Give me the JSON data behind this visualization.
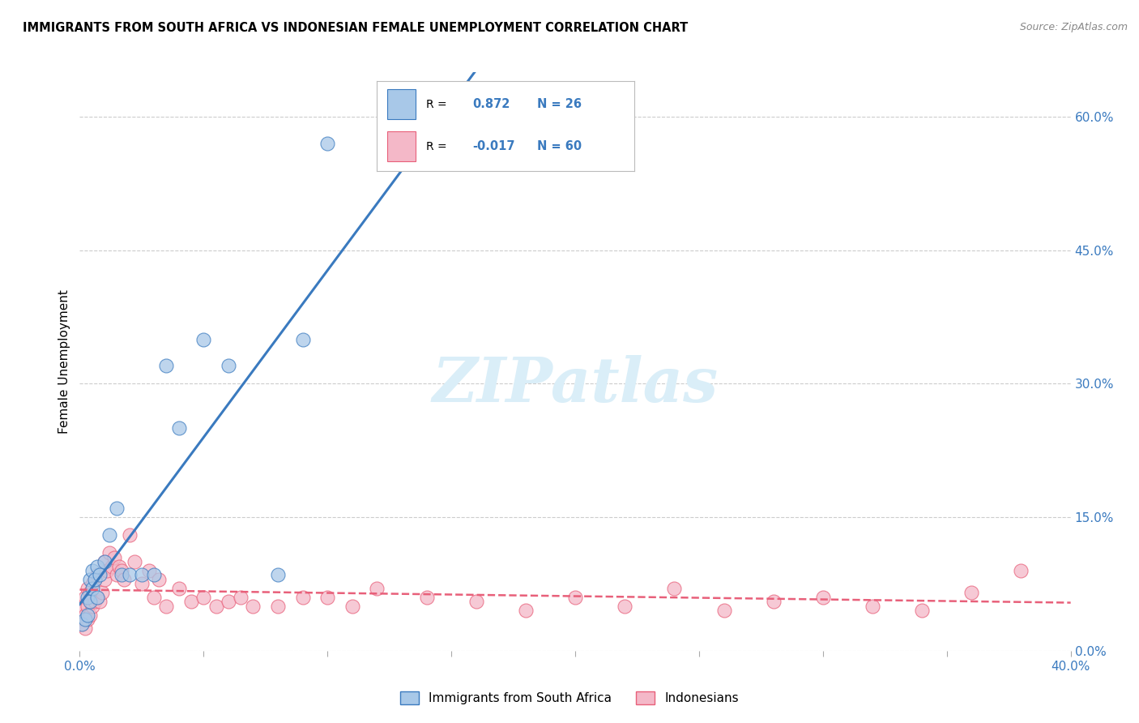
{
  "title": "IMMIGRANTS FROM SOUTH AFRICA VS INDONESIAN FEMALE UNEMPLOYMENT CORRELATION CHART",
  "source": "Source: ZipAtlas.com",
  "ylabel": "Female Unemployment",
  "legend_label1": "Immigrants from South Africa",
  "legend_label2": "Indonesians",
  "R1": 0.872,
  "N1": 26,
  "R2": -0.017,
  "N2": 60,
  "color_blue": "#a8c8e8",
  "color_pink": "#f4b8c8",
  "color_blue_line": "#3a7abf",
  "color_pink_line": "#e8607a",
  "watermark": "ZIPatlas",
  "watermark_color": "#daeef8",
  "blue_x": [
    0.001,
    0.002,
    0.003,
    0.003,
    0.004,
    0.004,
    0.005,
    0.005,
    0.006,
    0.007,
    0.007,
    0.008,
    0.01,
    0.012,
    0.015,
    0.017,
    0.02,
    0.025,
    0.03,
    0.035,
    0.04,
    0.05,
    0.06,
    0.08,
    0.09,
    0.1
  ],
  "blue_y": [
    0.03,
    0.035,
    0.04,
    0.06,
    0.055,
    0.08,
    0.07,
    0.09,
    0.08,
    0.095,
    0.06,
    0.085,
    0.1,
    0.13,
    0.16,
    0.085,
    0.085,
    0.085,
    0.085,
    0.32,
    0.25,
    0.35,
    0.32,
    0.085,
    0.35,
    0.57
  ],
  "pink_x": [
    0.001,
    0.001,
    0.002,
    0.002,
    0.002,
    0.003,
    0.003,
    0.003,
    0.004,
    0.004,
    0.005,
    0.005,
    0.006,
    0.006,
    0.007,
    0.007,
    0.008,
    0.009,
    0.01,
    0.01,
    0.011,
    0.012,
    0.013,
    0.014,
    0.015,
    0.016,
    0.017,
    0.018,
    0.02,
    0.022,
    0.025,
    0.028,
    0.03,
    0.032,
    0.035,
    0.04,
    0.045,
    0.05,
    0.055,
    0.06,
    0.065,
    0.07,
    0.08,
    0.09,
    0.1,
    0.11,
    0.12,
    0.14,
    0.16,
    0.18,
    0.2,
    0.22,
    0.24,
    0.26,
    0.28,
    0.3,
    0.32,
    0.34,
    0.36,
    0.38
  ],
  "pink_y": [
    0.03,
    0.05,
    0.025,
    0.04,
    0.06,
    0.035,
    0.05,
    0.07,
    0.04,
    0.065,
    0.05,
    0.075,
    0.055,
    0.08,
    0.06,
    0.085,
    0.055,
    0.065,
    0.08,
    0.1,
    0.09,
    0.11,
    0.095,
    0.105,
    0.085,
    0.095,
    0.09,
    0.08,
    0.13,
    0.1,
    0.075,
    0.09,
    0.06,
    0.08,
    0.05,
    0.07,
    0.055,
    0.06,
    0.05,
    0.055,
    0.06,
    0.05,
    0.05,
    0.06,
    0.06,
    0.05,
    0.07,
    0.06,
    0.055,
    0.045,
    0.06,
    0.05,
    0.07,
    0.045,
    0.055,
    0.06,
    0.05,
    0.045,
    0.065,
    0.09
  ],
  "xmin": 0.0,
  "xmax": 0.4,
  "ymin": 0.0,
  "ymax": 0.65,
  "right_yticks": [
    0.0,
    0.15,
    0.3,
    0.45,
    0.6
  ],
  "right_yticklabels": [
    "0.0%",
    "15.0%",
    "30.0%",
    "45.0%",
    "60.0%"
  ],
  "background_color": "#ffffff",
  "grid_color": "#cccccc"
}
